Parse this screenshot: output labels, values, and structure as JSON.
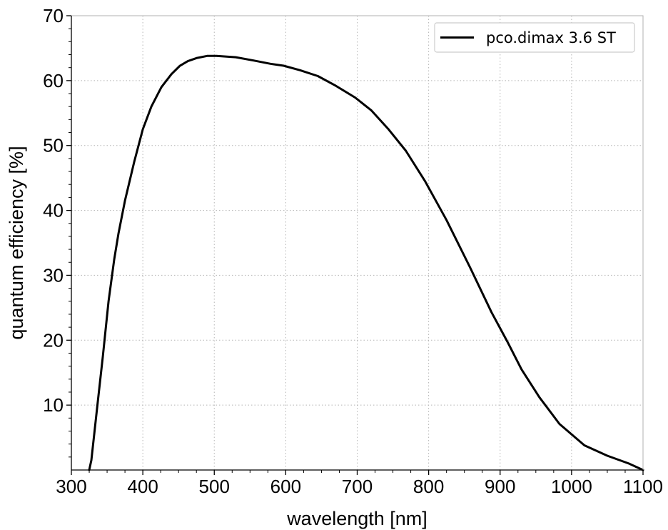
{
  "chart_data": {
    "type": "line",
    "title": "",
    "xlabel": "wavelength [nm]",
    "ylabel": "quantum efficiency [%]",
    "xlim": [
      300,
      1100
    ],
    "ylim": [
      0,
      70
    ],
    "xticks": [
      300,
      400,
      500,
      600,
      700,
      800,
      900,
      1000,
      1100
    ],
    "yticks": [
      10,
      20,
      30,
      40,
      50,
      60,
      70
    ],
    "x_minor_step": 25,
    "y_minor_step": 2,
    "grid": true,
    "legend_position": "top-right",
    "series": [
      {
        "name": "pco.dimax 3.6 ST",
        "color": "#000000",
        "x": [
          325,
          328,
          336,
          344,
          352,
          360,
          366,
          375,
          388,
          400,
          412,
          426,
          440,
          452,
          463,
          476,
          490,
          503,
          530,
          555,
          578,
          597,
          620,
          645,
          670,
          697,
          720,
          743,
          768,
          795,
          825,
          858,
          888,
          910,
          930,
          955,
          983,
          1018,
          1050,
          1080,
          1100
        ],
        "y": [
          0,
          1.5,
          9.5,
          17.5,
          26,
          32.5,
          36.5,
          41.5,
          47.5,
          52.5,
          56,
          59,
          61,
          62.3,
          63,
          63.5,
          63.8,
          63.8,
          63.6,
          63.1,
          62.6,
          62.3,
          61.6,
          60.7,
          59.2,
          57.4,
          55.4,
          52.6,
          49.2,
          44.5,
          38.5,
          31.2,
          24.3,
          19.8,
          15.5,
          11.2,
          7.1,
          3.8,
          2.2,
          1.0,
          0
        ]
      }
    ]
  }
}
